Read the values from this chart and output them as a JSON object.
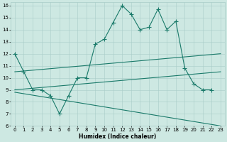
{
  "xlabel": "Humidex (Indice chaleur)",
  "background_color": "#cde8e2",
  "grid_color": "#a8ccc8",
  "line_color": "#1a7a6a",
  "xlim": [
    -0.5,
    23.5
  ],
  "ylim": [
    6,
    16.3
  ],
  "yticks": [
    6,
    7,
    8,
    9,
    10,
    11,
    12,
    13,
    14,
    15,
    16
  ],
  "xticks": [
    0,
    1,
    2,
    3,
    4,
    5,
    6,
    7,
    8,
    9,
    10,
    11,
    12,
    13,
    14,
    15,
    16,
    17,
    18,
    19,
    20,
    21,
    22,
    23
  ],
  "line1_x": [
    0,
    1,
    2,
    3,
    4,
    5,
    6,
    7,
    8,
    9,
    10,
    11,
    12,
    13,
    14,
    15,
    16,
    17,
    18,
    19,
    20,
    21,
    22
  ],
  "line1_y": [
    12.0,
    10.5,
    9.0,
    9.0,
    8.5,
    7.0,
    8.5,
    10.0,
    10.0,
    12.8,
    13.2,
    14.6,
    16.0,
    15.3,
    14.0,
    14.2,
    15.7,
    14.0,
    14.7,
    10.8,
    9.5,
    9.0,
    9.0
  ],
  "line2_x": [
    0,
    23
  ],
  "line2_y": [
    10.5,
    12.0
  ],
  "line3_x": [
    0,
    23
  ],
  "line3_y": [
    9.0,
    10.5
  ],
  "line4_x": [
    0,
    23
  ],
  "line4_y": [
    8.8,
    6.0
  ],
  "markersize": 2.5,
  "linewidth": 0.8,
  "tick_fontsize": 5.0,
  "xlabel_fontsize": 5.5
}
